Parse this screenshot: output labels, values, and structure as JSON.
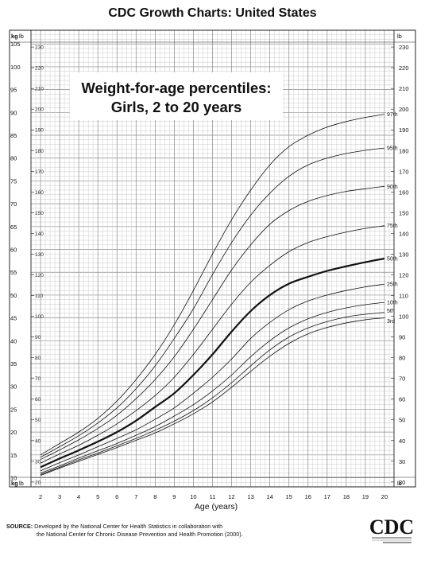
{
  "header": {
    "title": "CDC Growth Charts: United States"
  },
  "chart_data": {
    "type": "line",
    "title": "Weight-for-age percentiles:",
    "subtitle": "Girls, 2 to 20 years",
    "xlabel": "Age (years)",
    "unit_left": "kg",
    "unit_right": "lb",
    "xlim": [
      1.5,
      20.5
    ],
    "ylim_kg": [
      8,
      108
    ],
    "x_ticks": [
      2,
      3,
      4,
      5,
      6,
      7,
      8,
      9,
      10,
      11,
      12,
      13,
      14,
      15,
      16,
      17,
      18,
      19,
      20
    ],
    "kg_ticks": [
      10,
      15,
      20,
      25,
      30,
      35,
      40,
      45,
      50,
      55,
      60,
      65,
      70,
      75,
      80,
      85,
      90,
      95,
      100,
      105
    ],
    "lb_ticks": [
      20,
      30,
      40,
      50,
      60,
      70,
      80,
      90,
      100,
      110,
      120,
      130,
      140,
      150,
      160,
      170,
      180,
      190,
      200,
      210,
      220,
      230
    ],
    "grid": true,
    "x": [
      2,
      3,
      4,
      5,
      6,
      7,
      8,
      9,
      10,
      11,
      12,
      13,
      14,
      15,
      16,
      17,
      18,
      19,
      20
    ],
    "series": [
      {
        "name": "97th",
        "values": [
          15.0,
          17.5,
          20.0,
          23.0,
          26.8,
          31.5,
          37.0,
          43.5,
          51.0,
          59.0,
          66.5,
          73.0,
          78.5,
          82.5,
          85.0,
          86.8,
          88.0,
          88.9,
          89.6
        ]
      },
      {
        "name": "95th",
        "values": [
          14.5,
          16.8,
          19.2,
          22.0,
          25.3,
          29.5,
          34.5,
          40.5,
          47.0,
          54.5,
          61.5,
          67.5,
          72.3,
          76.0,
          78.5,
          80.0,
          81.0,
          81.7,
          82.2
        ]
      },
      {
        "name": "90th",
        "values": [
          14.0,
          16.1,
          18.3,
          20.8,
          23.7,
          27.3,
          31.5,
          36.5,
          42.5,
          49.0,
          55.5,
          61.0,
          65.5,
          68.5,
          70.5,
          71.8,
          72.7,
          73.3,
          73.8
        ]
      },
      {
        "name": "75th",
        "values": [
          13.2,
          15.2,
          17.1,
          19.3,
          21.8,
          24.7,
          28.0,
          32.0,
          37.0,
          42.5,
          48.0,
          52.8,
          56.5,
          59.5,
          61.5,
          62.8,
          63.8,
          64.6,
          65.2
        ]
      },
      {
        "name": "50th",
        "values": [
          12.3,
          14.2,
          16.0,
          17.9,
          20.0,
          22.5,
          25.5,
          28.5,
          32.5,
          37.0,
          42.0,
          46.5,
          50.0,
          52.5,
          54.0,
          55.3,
          56.3,
          57.2,
          58.0
        ]
      },
      {
        "name": "25th",
        "values": [
          11.5,
          13.3,
          15.0,
          16.8,
          18.6,
          20.5,
          22.8,
          25.3,
          28.5,
          32.0,
          36.0,
          40.5,
          44.0,
          46.8,
          48.7,
          50.0,
          51.0,
          51.8,
          52.4
        ]
      },
      {
        "name": "10th",
        "values": [
          11.0,
          12.6,
          14.3,
          15.9,
          17.5,
          19.3,
          21.2,
          23.5,
          26.0,
          29.0,
          32.5,
          36.5,
          40.0,
          42.8,
          44.8,
          46.2,
          47.2,
          47.9,
          48.4
        ]
      },
      {
        "name": "5th",
        "values": [
          10.7,
          12.3,
          13.9,
          15.4,
          17.0,
          18.6,
          20.4,
          22.4,
          24.7,
          27.5,
          30.8,
          34.5,
          38.0,
          40.8,
          42.8,
          44.2,
          45.2,
          45.8,
          46.2
        ]
      },
      {
        "name": "3rd",
        "values": [
          10.5,
          12.1,
          13.6,
          15.1,
          16.6,
          18.2,
          19.8,
          21.8,
          24.0,
          26.6,
          29.8,
          33.3,
          36.6,
          39.4,
          41.5,
          42.9,
          43.9,
          44.6,
          45.0
        ]
      }
    ]
  },
  "footer": {
    "source_label": "SOURCE:",
    "source_line1": "Developed by the National Center for Health Statistics in collaboration with",
    "source_line2": "the National Center for Chronic Disease Prevention and Health Promotion (2000).",
    "logo_text": "CDC"
  }
}
